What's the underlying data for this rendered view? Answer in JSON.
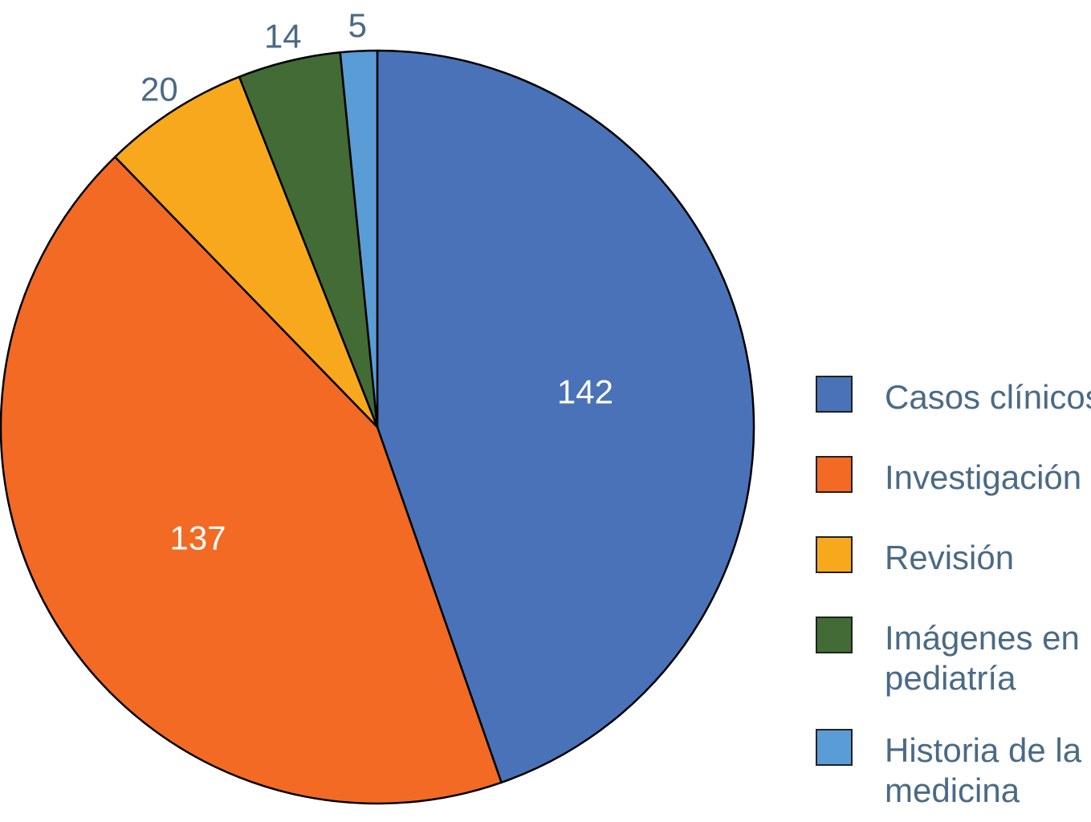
{
  "chart_data": {
    "type": "pie",
    "slices": [
      {
        "label": "Casos clínicos",
        "value": 142,
        "color": "#4A72B8"
      },
      {
        "label": "Investigación",
        "value": 137,
        "color": "#F26A24"
      },
      {
        "label": "Revisión",
        "value": 20,
        "color": "#F8A81C"
      },
      {
        "label": "Imágenes en pediatría",
        "value": 14,
        "color": "#436B35"
      },
      {
        "label": "Historia de la medicina",
        "value": 5,
        "color": "#5A9CD6"
      }
    ],
    "data_label_colors": {
      "inside": "#ffffff",
      "outside": "#4a6a86"
    },
    "start_angle": "12 o'clock",
    "direction": "clockwise",
    "legend_position": "right"
  }
}
